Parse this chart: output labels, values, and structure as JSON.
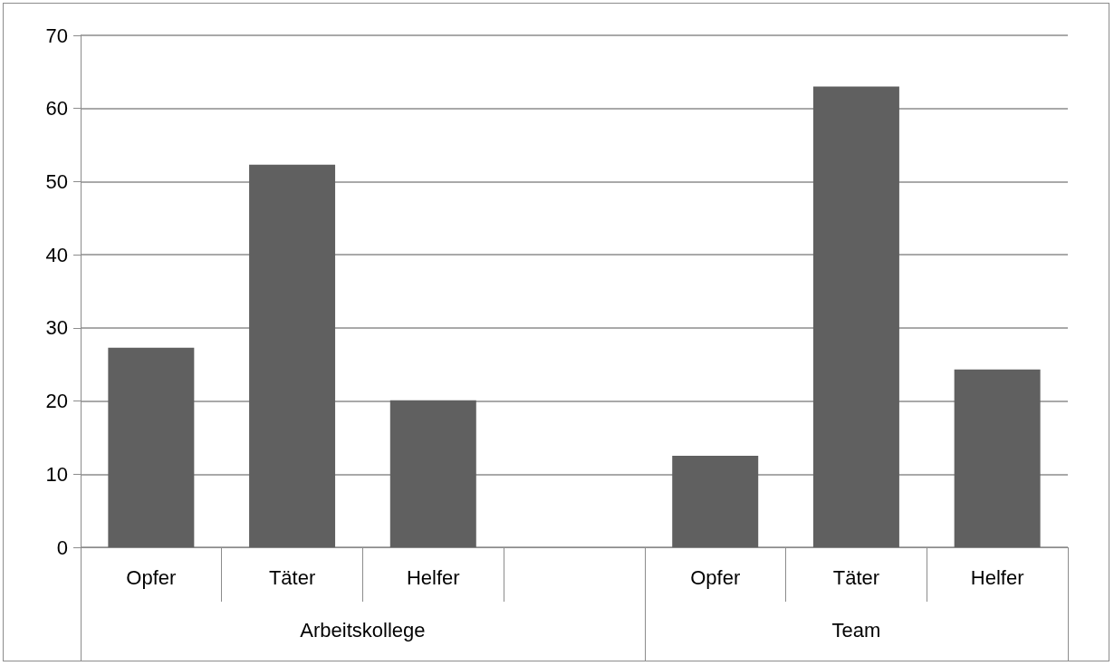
{
  "chart_data": {
    "type": "bar",
    "categories": [
      "Opfer",
      "Täter",
      "Helfer",
      null,
      "Opfer",
      "Täter",
      "Helfer"
    ],
    "values": [
      27.3,
      52.3,
      20.1,
      null,
      12.5,
      63.0,
      24.3
    ],
    "color": "#606060",
    "ylim": [
      0,
      70
    ],
    "yticks": [
      0,
      10,
      20,
      30,
      40,
      50,
      60,
      70
    ],
    "grid": "y",
    "annotations": [
      "Arbeitskollege",
      "Team"
    ]
  }
}
